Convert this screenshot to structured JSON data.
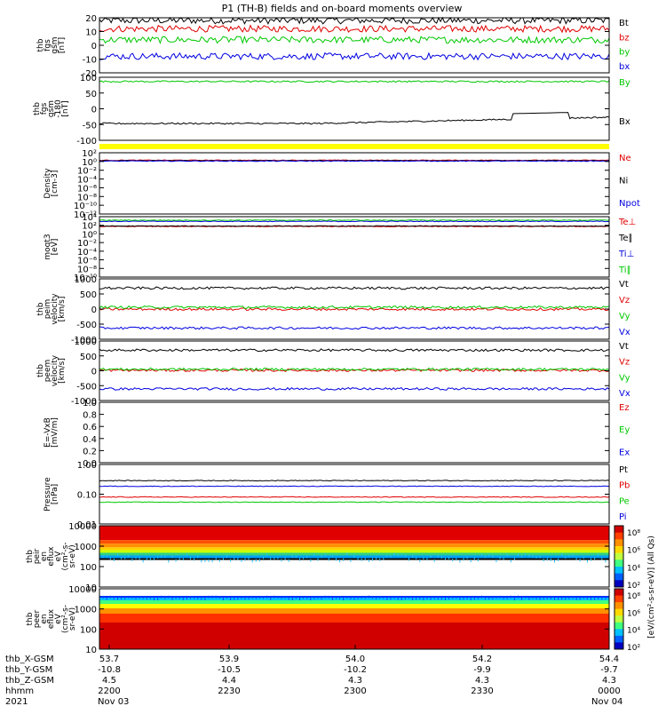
{
  "title": "P1 (TH-B) fields and on-board moments overview",
  "date": {
    "year": "2021",
    "start": "Nov 03",
    "end": "Nov 04"
  },
  "ephemeris": {
    "row_labels": [
      "thb_X-GSM",
      "thb_Y-GSM",
      "thb_Z-GSM",
      "hhmm"
    ],
    "columns": [
      {
        "x": "53.7",
        "y": "-10.8",
        "z": "4.5",
        "hhmm": "2200"
      },
      {
        "x": "53.9",
        "y": "-10.5",
        "z": "4.4",
        "hhmm": "2230"
      },
      {
        "x": "54.0",
        "y": "-10.2",
        "z": "4.3",
        "hhmm": "2300"
      },
      {
        "x": "54.2",
        "y": "-9.9",
        "z": "4.3",
        "hhmm": "2330"
      },
      {
        "x": "54.4",
        "y": "-9.7",
        "z": "4.3",
        "hhmm": "0000"
      }
    ]
  },
  "colorbar_label": "[eV/(cm²-s-sr-eV)] (All Qs)",
  "colors": {
    "black": "#000000",
    "red": "#e00000",
    "green": "#00c800",
    "blue": "#0000e0",
    "yellow": "#ffff00"
  },
  "chart_data": [
    {
      "type": "line",
      "id": "fgs",
      "ylabel": [
        "thb",
        "fgs",
        "gsm",
        "[nT]"
      ],
      "yticks": [
        "20",
        "10",
        "0",
        "-10",
        "-20"
      ],
      "ylim": [
        -20,
        20
      ],
      "series": [
        {
          "name": "Bt",
          "color": "black",
          "level": 18
        },
        {
          "name": "bz",
          "color": "red",
          "level": 12
        },
        {
          "name": "by",
          "color": "green",
          "level": 4
        },
        {
          "name": "bx",
          "color": "blue",
          "level": -8
        }
      ]
    },
    {
      "type": "line",
      "id": "fgs_gsm180",
      "ylabel": [
        "thb",
        "fgs",
        "gsm",
        "-180",
        "[nT]"
      ],
      "yticks": [
        "100",
        "50",
        "0",
        "-50",
        "-100"
      ],
      "ylim": [
        -120,
        105
      ],
      "series": [
        {
          "name": "By",
          "color": "green",
          "level": 90
        },
        {
          "name": "Bx",
          "color": "black",
          "level": -60
        }
      ]
    },
    {
      "type": "line",
      "id": "density",
      "ylabel": [
        "Density",
        "[cm-3]"
      ],
      "yticks": [
        "10²",
        "10⁰",
        "10⁻²",
        "10⁻⁴",
        "10⁻⁶",
        "10⁻⁸",
        "10⁻¹⁰",
        "10⁻¹²"
      ],
      "ylim": [
        -13,
        2.5
      ],
      "series": [
        {
          "name": "Ne",
          "color": "red",
          "level": 0.6
        },
        {
          "name": "Ni",
          "color": "black",
          "level": 0.5
        },
        {
          "name": "Npot",
          "color": "blue",
          "level": 0.4
        }
      ]
    },
    {
      "type": "line",
      "id": "moms_t3",
      "ylabel": [
        "moqt3",
        "[eV]"
      ],
      "yticks": [
        "10⁴",
        "10²",
        "10⁰",
        "10⁻²",
        "10⁻⁴",
        "10⁻⁶",
        "10⁻⁸",
        "10⁻¹⁰"
      ],
      "ylim": [
        -11,
        4.5
      ],
      "series": [
        {
          "name": "Te⊥",
          "color": "red",
          "level": 2
        },
        {
          "name": "Te∥",
          "color": "black",
          "level": 2.1
        },
        {
          "name": "Ti⊥",
          "color": "blue",
          "level": 3.3
        },
        {
          "name": "Ti∥",
          "color": "green",
          "level": 3.6
        }
      ]
    },
    {
      "type": "line",
      "id": "peim_velocity",
      "ylabel": [
        "thb",
        "peim",
        "velocity",
        "[km/s]"
      ],
      "yticks": [
        "1000",
        "500",
        "0",
        "-500",
        "-1000"
      ],
      "ylim": [
        -1100,
        1050
      ],
      "series": [
        {
          "name": "Vt",
          "color": "black",
          "level": 720
        },
        {
          "name": "Vz",
          "color": "red",
          "level": -30
        },
        {
          "name": "Vy",
          "color": "green",
          "level": 40
        },
        {
          "name": "Vx",
          "color": "blue",
          "level": -700
        }
      ]
    },
    {
      "type": "line",
      "id": "peem_velocity",
      "ylabel": [
        "thb",
        "peem",
        "velocity",
        "[km/s]"
      ],
      "yticks": [
        "1000",
        "500",
        "0",
        "-500",
        "-1000"
      ],
      "ylim": [
        -1100,
        1050
      ],
      "series": [
        {
          "name": "Vt",
          "color": "black",
          "level": 720
        },
        {
          "name": "Vz",
          "color": "red",
          "level": -10
        },
        {
          "name": "Vy",
          "color": "green",
          "level": 30
        },
        {
          "name": "Vx",
          "color": "blue",
          "level": -680
        }
      ]
    },
    {
      "type": "line",
      "id": "e_field",
      "ylabel": [
        "E=-VxB",
        "[mV/m]"
      ],
      "yticks": [
        "1.0",
        "0.8",
        "0.6",
        "0.4",
        "0.2",
        "0.0"
      ],
      "ylim": [
        0,
        1.0
      ],
      "series": [
        {
          "name": "Ez",
          "color": "red"
        },
        {
          "name": "Ey",
          "color": "green"
        },
        {
          "name": "Ex",
          "color": "blue"
        }
      ]
    },
    {
      "type": "line",
      "id": "pressure",
      "ylabel": [
        "Pressure",
        "[nPa]"
      ],
      "yticks": [
        "1.00",
        "0.10",
        "0.01"
      ],
      "ylim": [
        -2.05,
        0.05
      ],
      "scale": "log",
      "series": [
        {
          "name": "Pt",
          "color": "black",
          "level": -0.52
        },
        {
          "name": "Pb",
          "color": "red",
          "level": -1.1
        },
        {
          "name": "Pe",
          "color": "green",
          "level": -1.28
        },
        {
          "name": "Pi",
          "color": "blue",
          "level": -0.72
        }
      ]
    },
    {
      "type": "heatmap",
      "id": "peir_eflux",
      "ylabel": [
        "thb",
        "peir",
        "en",
        "eflux",
        "eV",
        "(cm²-s-",
        "sr-eV)"
      ],
      "yticks": [
        "10000",
        "1000",
        "100",
        "10"
      ],
      "ylim": [
        0.8,
        4.2
      ]
    },
    {
      "type": "heatmap",
      "id": "peer_eflux",
      "ylabel": [
        "thb",
        "peer",
        "en",
        "eflux",
        "eV",
        "(cm²-s-",
        "sr-eV)"
      ],
      "yticks": [
        "10000",
        "1000",
        "100",
        "10"
      ],
      "ylim": [
        0.8,
        4.2
      ]
    }
  ],
  "colorbar": {
    "ticks": [
      "10⁸",
      "10⁶",
      "10⁴",
      "10²"
    ]
  },
  "colorbar2": {
    "ticks": [
      "10⁸",
      "10⁶",
      "10⁴",
      "10²"
    ]
  }
}
